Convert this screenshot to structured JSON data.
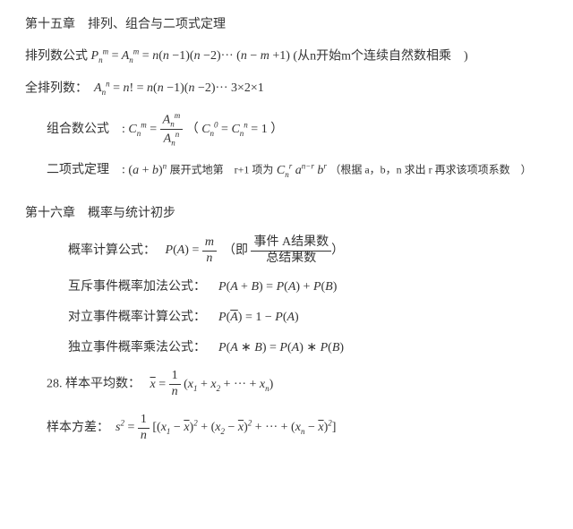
{
  "chapter15": {
    "title": "第十五章　排列、组合与二项式定理",
    "perm_label": "排列数公式",
    "perm_tail": "(从n开始m个连续自然数相乘　)",
    "fullperm_label": "全排列数：",
    "comb_label": "组合数公式　:",
    "comb_paren_tail": "）",
    "binom_label": "二项式定理　:",
    "binom_mid1": "展开式地第　r+1 项为",
    "binom_note": "（根据 a，b，n 求出 r 再求该项项系数　）"
  },
  "chapter16": {
    "title": "第十六章　概率与统计初步",
    "prob_label": "概率计算公式：",
    "prob_ji": "（即",
    "prob_frac_num": "事件 A结果数",
    "prob_frac_den": "总结果数",
    "prob_close": "）",
    "mutex_label": "互斥事件概率加法公式：",
    "comp_label": "对立事件概率计算公式：",
    "indep_label": "独立事件概率乘法公式：",
    "mean_label": "28. 样本平均数：",
    "var_label": "样本方差："
  }
}
